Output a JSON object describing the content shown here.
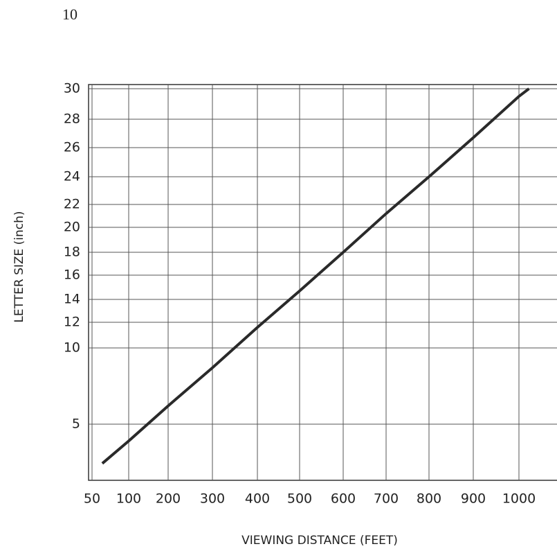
{
  "page_number": "10",
  "chart_data": {
    "type": "line",
    "xlabel": "VIEWING DISTANCE (FEET)",
    "ylabel": "LETTER SIZE (inch)",
    "x": [
      64,
      100,
      200,
      300,
      400,
      500,
      600,
      700,
      800,
      900,
      1000,
      1020
    ],
    "series": [
      {
        "color": "#2a2a2a",
        "values": [
          3.6,
          4.4,
          6.2,
          8.7,
          11.6,
          14.7,
          18,
          21.2,
          24,
          26.7,
          29.5,
          30
        ]
      }
    ],
    "xlim": [
      45,
      1080
    ],
    "xticks": [
      50,
      100,
      200,
      300,
      400,
      500,
      600,
      700,
      800,
      900,
      1000
    ],
    "ylim": [
      3,
      30
    ],
    "yticks": [
      5,
      10,
      12,
      14,
      16,
      18,
      20,
      22,
      24,
      26,
      28,
      30
    ],
    "grid": true
  }
}
